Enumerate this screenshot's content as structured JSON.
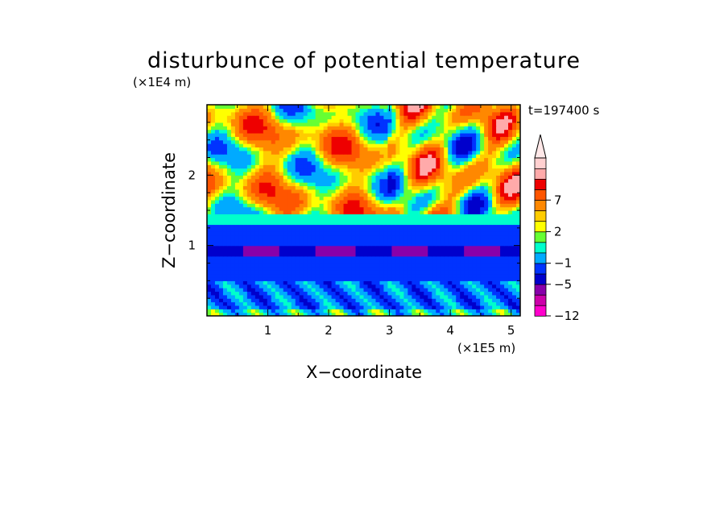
{
  "chart_data": {
    "type": "heatmap",
    "title": "disturbunce of potential temperature",
    "xlabel": "X−coordinate",
    "ylabel": "Z−coordinate",
    "x_unit": "(×1E5 m)",
    "y_unit": "(×1E4 m)",
    "time_label": "t=197400 s",
    "xlim": [
      0,
      5.15
    ],
    "ylim": [
      0,
      3.0
    ],
    "x_ticks": [
      1,
      2,
      3,
      4,
      5
    ],
    "y_ticks": [
      1,
      2
    ],
    "colorbar": {
      "levels": [
        -12,
        -10,
        -8,
        -5,
        -3,
        -1,
        0,
        1,
        2,
        3,
        5,
        7,
        9,
        11
      ],
      "labeled_ticks": [
        "−12",
        "−5",
        "−1",
        "2",
        "7"
      ],
      "colors": [
        "#ff00cc",
        "#cc00aa",
        "#8800aa",
        "#0000cc",
        "#0033ff",
        "#00aaff",
        "#00ffcc",
        "#66ff33",
        "#ffff00",
        "#ffcc00",
        "#ff8800",
        "#ff5500",
        "#ee0000",
        "#ffaaaa",
        "#ffd0d0"
      ],
      "extend": "max"
    },
    "bands": [
      {
        "z_min": 0.0,
        "z_max": 0.1,
        "value": -1
      },
      {
        "z_min": 0.1,
        "z_max": 0.5,
        "value": -3
      },
      {
        "z_min": 0.5,
        "z_max": 0.85,
        "value": -5
      },
      {
        "z_min": 0.85,
        "z_max": 1.0,
        "value": -8
      },
      {
        "z_min": 1.0,
        "z_max": 1.3,
        "value": -5
      },
      {
        "z_min": 1.3,
        "z_max": 1.45,
        "value": -1
      },
      {
        "z_min": 1.45,
        "z_max": 3.0,
        "value": 2
      }
    ]
  }
}
